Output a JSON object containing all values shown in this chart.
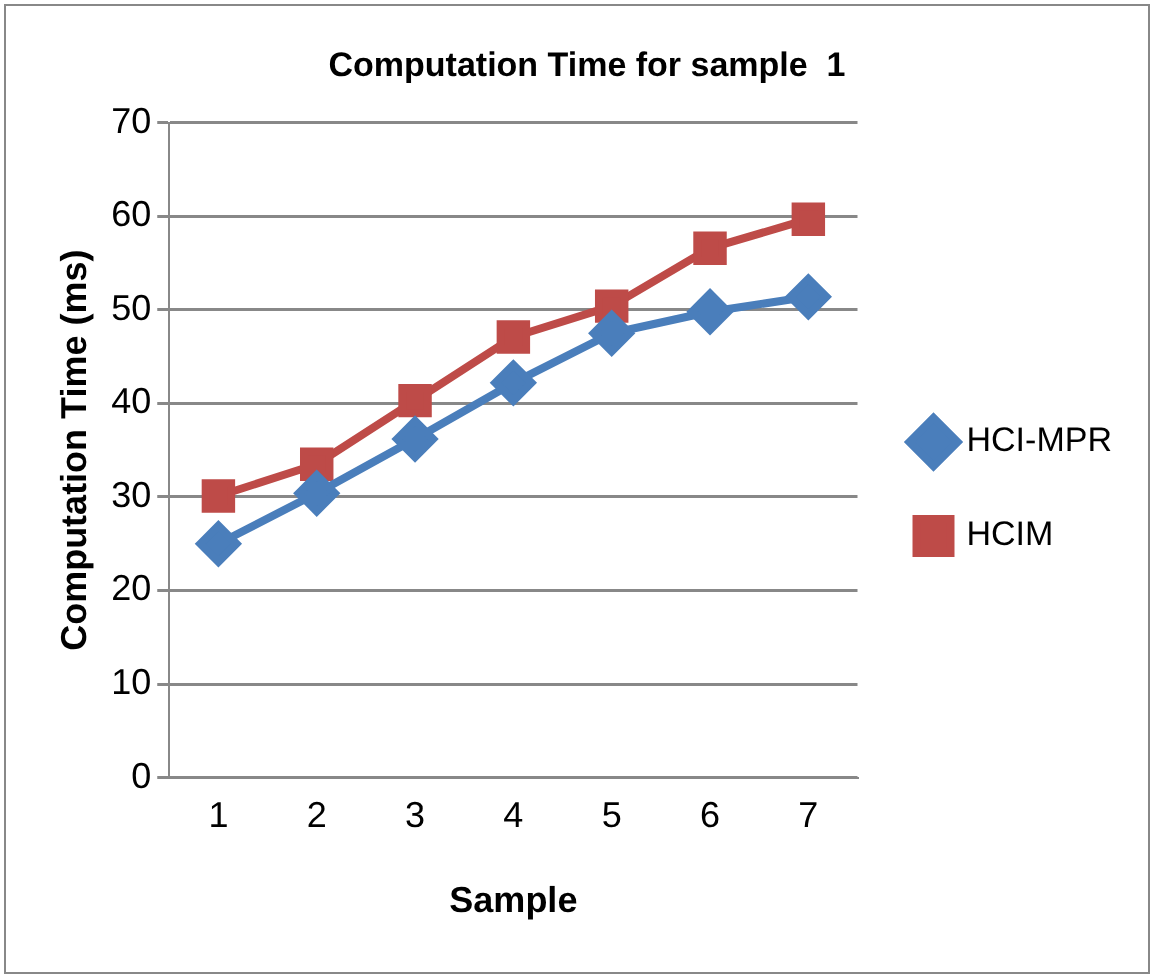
{
  "chart_data": {
    "type": "line",
    "title": "Computation Time for sample  1",
    "xlabel": "Sample",
    "ylabel": "Computation Time (ms)",
    "categories": [
      "1",
      "2",
      "3",
      "4",
      "5",
      "6",
      "7"
    ],
    "series": [
      {
        "name": "HCI-MPR",
        "color": "#4a7ebb",
        "marker": "diamond",
        "values": [
          25,
          30.4,
          36.2,
          42.2,
          47.5,
          49.8,
          51.4
        ]
      },
      {
        "name": "HCIM",
        "color": "#be4b48",
        "marker": "square",
        "values": [
          30.1,
          33.5,
          40.3,
          47.1,
          50.4,
          56.6,
          59.7
        ]
      }
    ],
    "ylim": [
      0,
      70
    ],
    "yticks": [
      0,
      10,
      20,
      30,
      40,
      50,
      60,
      70
    ],
    "grid": "y",
    "legend": "right"
  }
}
